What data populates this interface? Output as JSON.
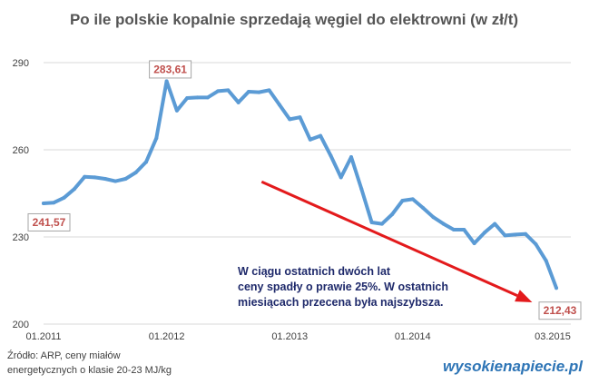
{
  "chart_data": {
    "type": "line",
    "title": "Po ile polskie kopalnie sprzedają węgiel do elektrowni (w zł/t)",
    "xlabel": "",
    "ylabel": "",
    "ylim": [
      200,
      290
    ],
    "yticks": [
      "200",
      "230",
      "260",
      "290"
    ],
    "x_ticks": [
      "01.2011",
      "01.2012",
      "01.2013",
      "01.2014",
      "03.2015"
    ],
    "grid": true,
    "series": [
      {
        "color": "#5b9bd5",
        "x": [
          "01.2011",
          "02.2011",
          "03.2011",
          "04.2011",
          "05.2011",
          "06.2011",
          "07.2011",
          "08.2011",
          "09.2011",
          "10.2011",
          "11.2011",
          "12.2011",
          "01.2012",
          "02.2012",
          "03.2012",
          "04.2012",
          "05.2012",
          "06.2012",
          "07.2012",
          "08.2012",
          "09.2012",
          "10.2012",
          "11.2012",
          "12.2012",
          "01.2013",
          "02.2013",
          "03.2013",
          "04.2013",
          "05.2013",
          "06.2013",
          "07.2013",
          "08.2013",
          "09.2013",
          "10.2013",
          "11.2013",
          "12.2013",
          "01.2014",
          "02.2014",
          "03.2014",
          "04.2014",
          "05.2014",
          "06.2014",
          "07.2014",
          "08.2014",
          "09.2014",
          "10.2014",
          "11.2014",
          "12.2014",
          "01.2015",
          "02.2015",
          "03.2015"
        ],
        "values": [
          241.57,
          241.8,
          243.5,
          246.5,
          250.7,
          250.5,
          250.0,
          249.2,
          250.0,
          252.2,
          255.8,
          264.0,
          283.61,
          273.5,
          277.8,
          278.0,
          278.0,
          280.2,
          280.5,
          276.3,
          280.0,
          279.8,
          280.5,
          275.5,
          270.5,
          271.2,
          263.5,
          264.8,
          258.0,
          250.5,
          257.5,
          246.5,
          235.0,
          234.5,
          237.8,
          242.5,
          243.0,
          240.0,
          236.8,
          234.5,
          232.5,
          232.5,
          227.8,
          231.5,
          234.5,
          230.5,
          230.8,
          231.0,
          227.5,
          221.8,
          212.43
        ]
      }
    ],
    "data_labels": [
      {
        "x": "01.2011",
        "value": 241.57,
        "text": "241,57"
      },
      {
        "x": "01.2012",
        "value": 283.61,
        "text": "283,61"
      },
      {
        "x": "03.2015",
        "value": 212.43,
        "text": "212,43"
      }
    ],
    "annotation": {
      "lines": [
        "W ciągu ostatnich dwóch lat",
        "ceny spadły o prawie 25%. W ostatnich",
        "miesiącach przecena była najszybsza."
      ],
      "arrow_color": "#e31a1c"
    }
  },
  "footer": {
    "source_lines": [
      "Źródło: ARP, ceny miałów",
      "energetycznych o klasie 20-23 MJ/kg"
    ],
    "brand": "wysokienapiecie.pl"
  }
}
